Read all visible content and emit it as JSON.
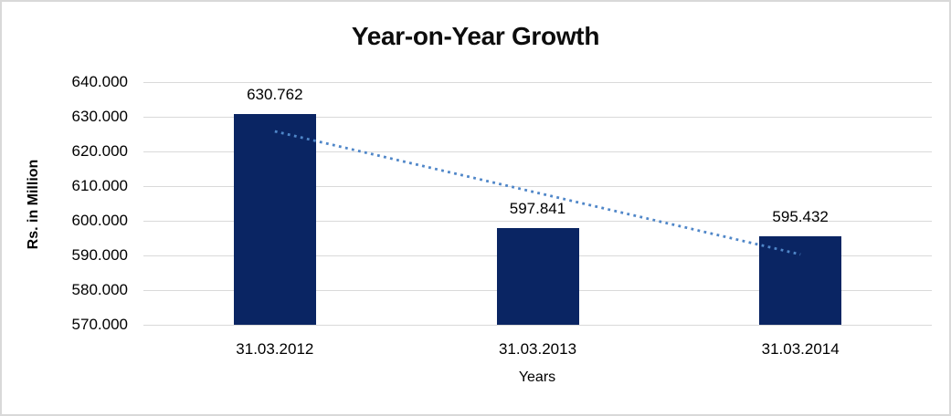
{
  "chart_data": {
    "type": "bar",
    "title": "Year-on-Year Growth",
    "xlabel": "Years",
    "ylabel": "Rs. in Million",
    "categories": [
      "31.03.2012",
      "31.03.2013",
      "31.03.2014"
    ],
    "values": [
      630.762,
      597.841,
      595.432
    ],
    "value_labels": [
      "630.762",
      "597.841",
      "595.432"
    ],
    "ylim": [
      570,
      640
    ],
    "yticks": [
      {
        "value": 640,
        "label": "640.000"
      },
      {
        "value": 630,
        "label": "630.000"
      },
      {
        "value": 620,
        "label": "620.000"
      },
      {
        "value": 610,
        "label": "610.000"
      },
      {
        "value": 600,
        "label": "600.000"
      },
      {
        "value": 590,
        "label": "590.000"
      },
      {
        "value": 580,
        "label": "580.000"
      },
      {
        "value": 570,
        "label": "570.000"
      }
    ],
    "grid": true,
    "legend": false,
    "trendline": {
      "type": "linear",
      "style": "dotted",
      "start_value": 625.8,
      "end_value": 590.3
    },
    "colors": {
      "bar": "#0A2563",
      "trendline": "#4F86C8",
      "gridline": "#D9D9D9",
      "border": "#D9D9D9",
      "text": "#000000"
    }
  }
}
